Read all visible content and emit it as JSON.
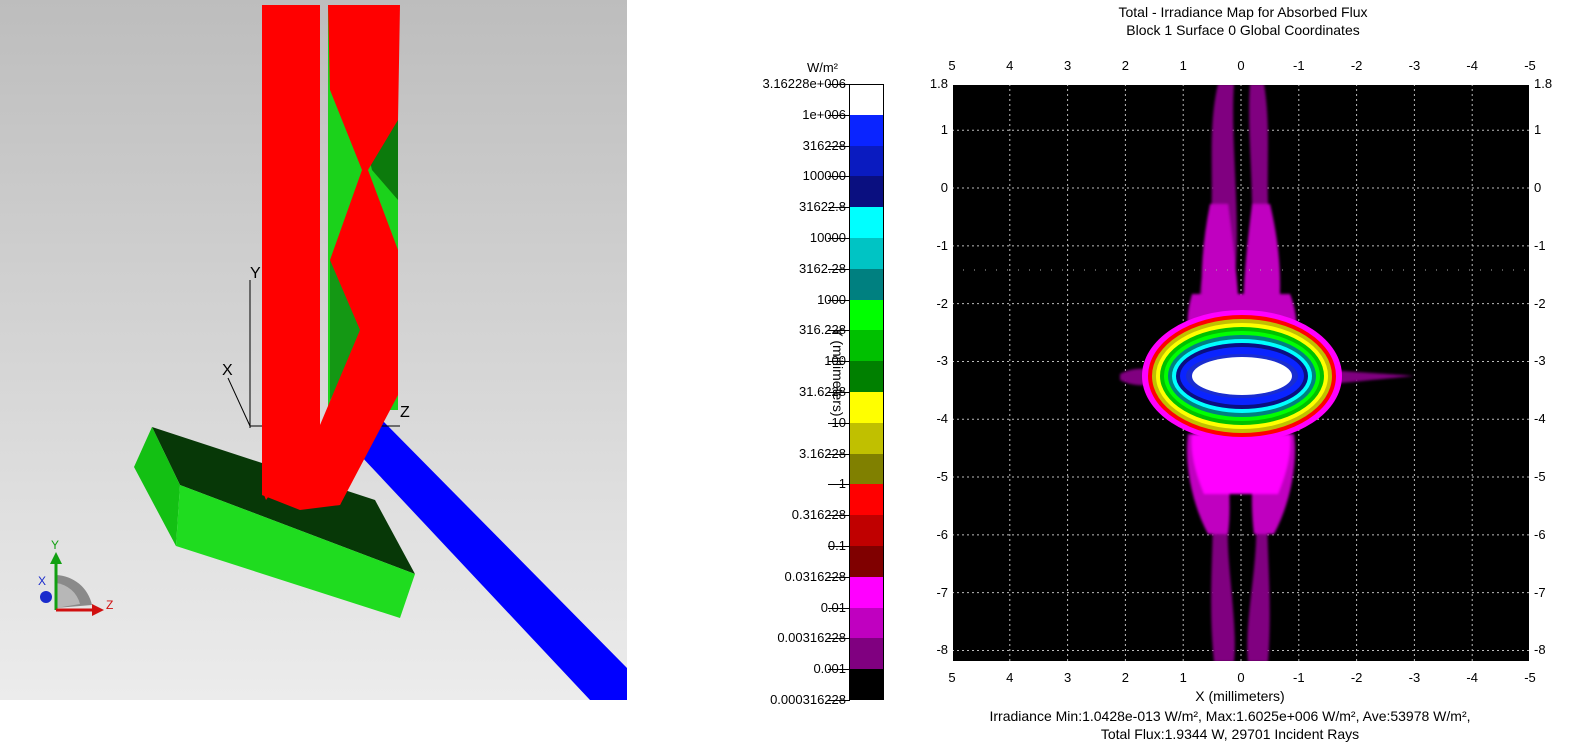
{
  "viewer": {
    "axis_labels": {
      "y": "Y",
      "x": "X",
      "z": "Z"
    },
    "triad_labels": {
      "y": "Y",
      "x": "X",
      "z": "Z"
    }
  },
  "chart": {
    "title_line1": "Total - Irradiance Map for Absorbed Flux",
    "title_line2": "Block 1 Surface 0    Global Coordinates",
    "units": "W/m²",
    "ylabel": "Y (millimeters)",
    "xlabel": "X (millimeters)",
    "stats_line1": "Irradiance Min:1.0428e-013 W/m², Max:1.6025e+006 W/m², Ave:53978 W/m²,",
    "stats_line2": "Total Flux:1.9344 W, 29701 Incident Rays",
    "x_ticks": [
      "5",
      "4",
      "3",
      "2",
      "1",
      "0",
      "-1",
      "-2",
      "-3",
      "-4",
      "-5"
    ],
    "y_ticks": [
      "1.8",
      "1",
      "0",
      "-1",
      "-2",
      "-3",
      "-4",
      "-5",
      "-6",
      "-7",
      "-8"
    ],
    "legend_labels": [
      "3.16228e+006",
      "1e+006",
      "316228",
      "100000",
      "31622.8",
      "10000",
      "3162.28",
      "1000",
      "316.228",
      "100",
      "31.6228",
      "10",
      "3.16228",
      "1",
      "0.316228",
      "0.1",
      "0.0316228",
      "0.01",
      "0.00316228",
      "0.001",
      "0.000316228"
    ],
    "legend_colors": [
      "#ffffff",
      "#0a24ff",
      "#0a1bc0",
      "#0a0f80",
      "#00ffff",
      "#00c4c4",
      "#008080",
      "#00ff00",
      "#00c000",
      "#008000",
      "#ffff00",
      "#c0c000",
      "#808000",
      "#ff0000",
      "#c00000",
      "#800000",
      "#ff00ff",
      "#c000c0",
      "#800080",
      "#000000"
    ]
  },
  "chart_data": {
    "type": "heatmap",
    "title": "Total - Irradiance Map for Absorbed Flux",
    "subtitle": "Block 1 Surface 0    Global Coordinates",
    "xlabel": "X (millimeters)",
    "ylabel": "Y (millimeters)",
    "xlim": [
      5,
      -5
    ],
    "ylim": [
      -8.2,
      1.8
    ],
    "colorbar_units": "W/m²",
    "colorbar_scale": "log",
    "colorbar_range": [
      0.000316228,
      3162280
    ],
    "peak_center": [
      0,
      -3.25
    ],
    "stats": {
      "min": "1.0428e-013",
      "max": "1.6025e+006",
      "ave": "53978",
      "total_flux": "1.9344",
      "incident_rays": 29701
    }
  }
}
